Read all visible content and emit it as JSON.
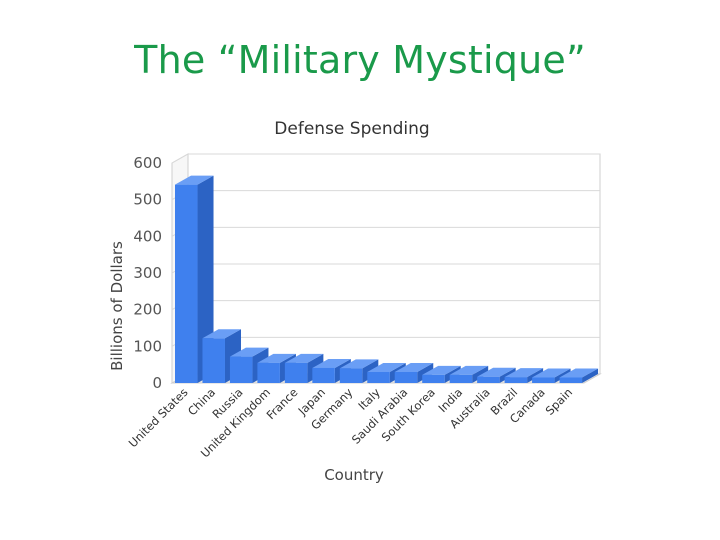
{
  "slide": {
    "title": "The “Military Mystique”"
  },
  "chart_data": {
    "type": "bar",
    "title": "Defense Spending",
    "xlabel": "Country",
    "ylabel": "Billions of Dollars",
    "ylim": [
      0,
      600
    ],
    "yticks": [
      0,
      100,
      200,
      300,
      400,
      500,
      600
    ],
    "grid": true,
    "bar_color": "#3f80ee",
    "categories": [
      "United States",
      "China",
      "Russia",
      "United Kingdom",
      "France",
      "Japan",
      "Germany",
      "Italy",
      "Saudi Arabia",
      "South Korea",
      "India",
      "Australia",
      "Brazil",
      "Canada",
      "Spain"
    ],
    "values": [
      541,
      122,
      72,
      55,
      55,
      41,
      40,
      30,
      30,
      22,
      22,
      17,
      16,
      15,
      15
    ]
  }
}
